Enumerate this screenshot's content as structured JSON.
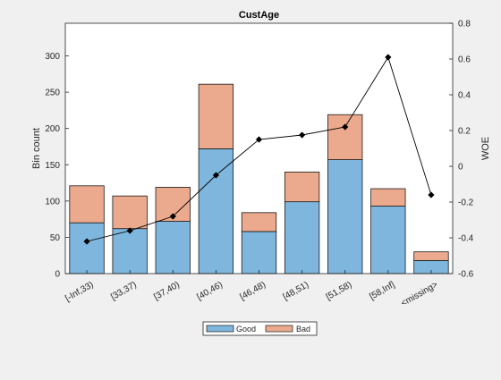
{
  "chart_data": {
    "type": "bar",
    "title": "CustAge",
    "xlabel": "",
    "ylabel": "Bin count",
    "y2label": "WOE",
    "categories": [
      "[-Inf,33)",
      "[33,37)",
      "[37,40)",
      "[40,46)",
      "[46,48)",
      "[48,51)",
      "[51,58)",
      "[58,Inf]",
      "<missing>"
    ],
    "stacked": true,
    "series": [
      {
        "name": "Good",
        "values": [
          70,
          62,
          72,
          172,
          58,
          99,
          157,
          93,
          18
        ],
        "color": "#7eb6dd"
      },
      {
        "name": "Bad",
        "values": [
          51,
          45,
          47,
          89,
          26,
          41,
          62,
          24,
          12
        ],
        "color": "#ebaa8d"
      }
    ],
    "line": {
      "name": "WOE",
      "axis": "right",
      "values": [
        -0.42,
        -0.36,
        -0.28,
        -0.05,
        0.15,
        0.175,
        0.22,
        0.61,
        -0.16
      ],
      "color": "#000000"
    },
    "ylim": [
      0,
      345
    ],
    "yticks": [
      0,
      50,
      100,
      150,
      200,
      250,
      300
    ],
    "y2lim": [
      -0.6,
      0.8
    ],
    "y2ticks": [
      -0.6,
      -0.4,
      -0.2,
      0,
      0.2,
      0.4,
      0.6,
      0.8
    ],
    "y2ticklabels": [
      "-0.6",
      "-0.4",
      "-0.2",
      "0",
      "0.2",
      "0.4",
      "0.6",
      "0.8"
    ],
    "grid": false,
    "legend_position": "bottom-center"
  }
}
